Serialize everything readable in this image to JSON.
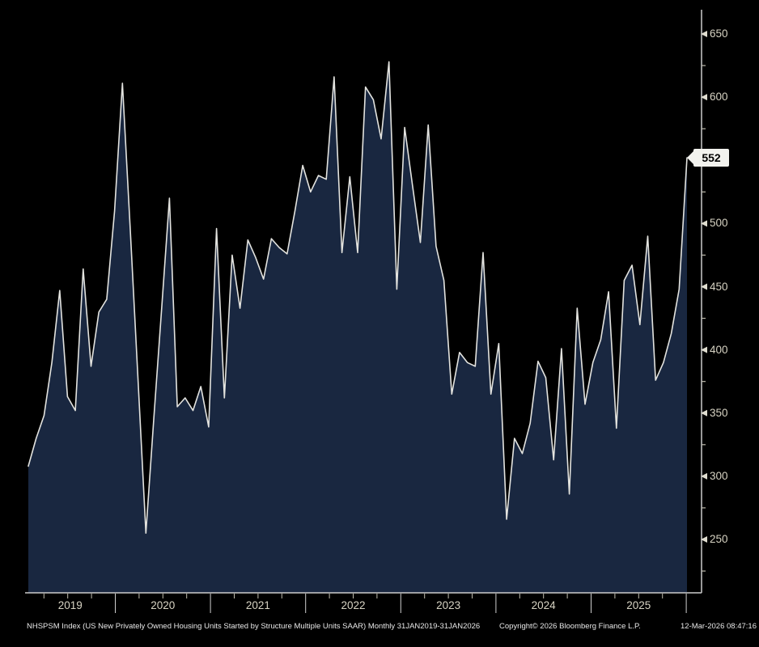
{
  "chart_data": {
    "type": "area",
    "title": "NHSPSM Index (US New Privately Owned Housing Units Started by Structure Multiple Units SAAR)",
    "x_unit": "month",
    "start_month": "2019-01",
    "end_month": "2026-01",
    "year_labels": [
      "2019",
      "2020",
      "2021",
      "2022",
      "2023",
      "2024",
      "2025"
    ],
    "values": [
      308,
      330,
      348,
      390,
      447,
      363,
      352,
      464,
      387,
      430,
      440,
      510,
      611,
      495,
      375,
      255,
      345,
      432,
      520,
      355,
      362,
      352,
      371,
      339,
      496,
      362,
      475,
      433,
      487,
      473,
      456,
      488,
      481,
      476,
      510,
      546,
      525,
      538,
      535,
      616,
      477,
      537,
      477,
      608,
      598,
      567,
      628,
      448,
      576,
      530,
      485,
      578,
      482,
      455,
      365,
      398,
      390,
      387,
      477,
      365,
      405,
      266,
      330,
      318,
      342,
      391,
      378,
      313,
      401,
      286,
      433,
      357,
      390,
      408,
      446,
      338,
      455,
      467,
      420,
      490,
      376,
      390,
      413,
      448,
      552
    ],
    "ylim": [
      208,
      669
    ],
    "y_major_ticks": [
      650,
      600,
      550,
      500,
      450,
      400,
      350,
      300,
      250
    ],
    "y_minor_ticks": [
      625,
      575,
      525,
      475,
      425,
      375,
      325,
      275,
      225
    ],
    "grid": "off",
    "legend": "none",
    "last_value": 552,
    "area_color": "#192740",
    "line_color": "#e3e3df"
  },
  "footer": {
    "description": "NHSPSM Index (US New Privately Owned Housing Units Started by Structure Multiple Units SAAR) Monthly 31JAN2019-31JAN2026",
    "copyright": "Copyright© 2026 Bloomberg Finance L.P.",
    "timestamp": "12-Mar-2026 08:47:16"
  },
  "colors": {
    "background": "#000000",
    "axis_line": "#cccccc",
    "tick_mark": "#c0bdb0",
    "tick_label": "#d6d2c2",
    "footer_text": "#e8e8e8",
    "badge_bg": "#f2f2ee",
    "badge_text": "#000000"
  }
}
